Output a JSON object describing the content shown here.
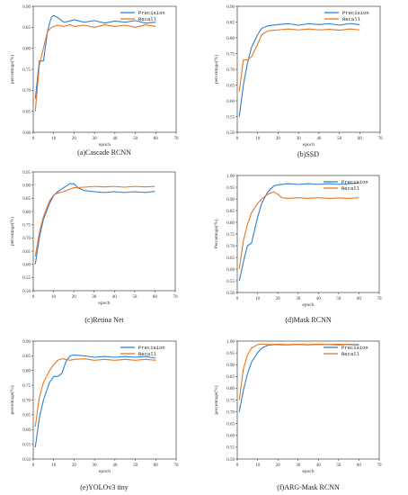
{
  "colors": {
    "precision": "#2e7fd0",
    "recall": "#e8761e"
  },
  "chart_data": [
    {
      "type": "line",
      "caption": "(a)Cascade RCNN",
      "xlabel": "epoch",
      "ylabel": "percentage(%)",
      "xlim": [
        0,
        70
      ],
      "ylim": [
        0.6,
        0.9
      ],
      "xticks": [
        "0",
        "10",
        "20",
        "30",
        "40",
        "50",
        "60",
        "70"
      ],
      "yticks": [
        "0.60",
        "0.65",
        "0.70",
        "0.75",
        "0.80",
        "0.85",
        "0.90"
      ],
      "legend_position": "top-right",
      "series": [
        {
          "name": "Precision",
          "color_key": "precision",
          "x": [
            1,
            3,
            5,
            7,
            8,
            9,
            10,
            12,
            15,
            18,
            20,
            25,
            30,
            35,
            40,
            45,
            50,
            55,
            60
          ],
          "y": [
            0.68,
            0.77,
            0.77,
            0.84,
            0.86,
            0.875,
            0.878,
            0.873,
            0.862,
            0.865,
            0.868,
            0.862,
            0.866,
            0.86,
            0.865,
            0.862,
            0.866,
            0.86,
            0.862
          ]
        },
        {
          "name": "Recall",
          "color_key": "recall",
          "x": [
            1,
            3,
            5,
            7,
            9,
            10,
            12,
            15,
            18,
            20,
            25,
            30,
            35,
            40,
            45,
            50,
            55,
            60
          ],
          "y": [
            0.65,
            0.76,
            0.8,
            0.84,
            0.85,
            0.852,
            0.855,
            0.852,
            0.856,
            0.852,
            0.855,
            0.85,
            0.856,
            0.852,
            0.855,
            0.85,
            0.856,
            0.852
          ]
        }
      ]
    },
    {
      "type": "line",
      "caption": "(b)SSD",
      "xlabel": "epoch",
      "ylabel": "percentage(%)",
      "xlim": [
        0,
        70
      ],
      "ylim": [
        0.5,
        0.9
      ],
      "xticks": [
        "0",
        "10",
        "20",
        "30",
        "40",
        "50",
        "60",
        "70"
      ],
      "yticks": [
        "0.50",
        "0.55",
        "0.60",
        "0.65",
        "0.70",
        "0.75",
        "0.80",
        "0.85",
        "0.90"
      ],
      "legend_position": "top-right",
      "series": [
        {
          "name": "Precision",
          "color_key": "precision",
          "x": [
            1,
            3,
            5,
            7,
            10,
            12,
            15,
            20,
            25,
            30,
            35,
            40,
            45,
            50,
            55,
            60
          ],
          "y": [
            0.55,
            0.65,
            0.72,
            0.77,
            0.81,
            0.83,
            0.838,
            0.842,
            0.845,
            0.84,
            0.845,
            0.842,
            0.845,
            0.84,
            0.845,
            0.842
          ]
        },
        {
          "name": "Recall",
          "color_key": "recall",
          "x": [
            1,
            3,
            5,
            7,
            10,
            12,
            15,
            20,
            25,
            30,
            35,
            40,
            45,
            50,
            55,
            60
          ],
          "y": [
            0.63,
            0.73,
            0.73,
            0.74,
            0.78,
            0.81,
            0.822,
            0.825,
            0.828,
            0.825,
            0.828,
            0.825,
            0.827,
            0.824,
            0.828,
            0.825
          ]
        }
      ]
    },
    {
      "type": "line",
      "caption": "(c)Retina Net",
      "xlabel": "epoch",
      "ylabel": "percentage(%)",
      "xlim": [
        0,
        70
      ],
      "ylim": [
        0.5,
        0.95
      ],
      "xticks": [
        "0",
        "10",
        "20",
        "30",
        "40",
        "50",
        "60",
        "70"
      ],
      "yticks": [
        "0.50",
        "0.55",
        "0.60",
        "0.65",
        "0.70",
        "0.75",
        "0.80",
        "0.85",
        "0.90",
        "0.95"
      ],
      "legend_position": "none",
      "series": [
        {
          "name": "",
          "color_key": "precision",
          "x": [
            1,
            3,
            5,
            8,
            10,
            12,
            15,
            18,
            20,
            22,
            25,
            30,
            35,
            40,
            45,
            50,
            55,
            60
          ],
          "y": [
            0.6,
            0.7,
            0.77,
            0.83,
            0.86,
            0.875,
            0.89,
            0.905,
            0.905,
            0.89,
            0.88,
            0.875,
            0.872,
            0.875,
            0.872,
            0.875,
            0.872,
            0.876
          ]
        },
        {
          "name": "",
          "color_key": "recall",
          "x": [
            1,
            3,
            5,
            8,
            10,
            12,
            15,
            18,
            20,
            25,
            30,
            35,
            40,
            45,
            50,
            55,
            60
          ],
          "y": [
            0.63,
            0.72,
            0.78,
            0.84,
            0.862,
            0.87,
            0.875,
            0.885,
            0.89,
            0.892,
            0.895,
            0.893,
            0.895,
            0.892,
            0.895,
            0.893,
            0.895
          ]
        }
      ]
    },
    {
      "type": "line",
      "caption": "(d)Mask RCNN",
      "xlabel": "epoch",
      "ylabel": "Percentage(%)",
      "xlim": [
        0,
        70
      ],
      "ylim": [
        0.5,
        1.0
      ],
      "xticks": [
        "0",
        "10",
        "20",
        "30",
        "40",
        "50",
        "60",
        "70"
      ],
      "yticks": [
        "0.50",
        "0.55",
        "0.60",
        "0.65",
        "0.70",
        "0.75",
        "0.80",
        "0.85",
        "0.90",
        "0.95",
        "1.00"
      ],
      "legend_position": "top-right",
      "series": [
        {
          "name": "Precision",
          "color_key": "precision",
          "x": [
            1,
            3,
            5,
            7,
            10,
            12,
            15,
            18,
            20,
            25,
            30,
            35,
            40,
            45,
            50,
            55,
            60
          ],
          "y": [
            0.55,
            0.63,
            0.7,
            0.71,
            0.82,
            0.88,
            0.93,
            0.955,
            0.96,
            0.965,
            0.962,
            0.965,
            0.962,
            0.965,
            0.962,
            0.965,
            0.968
          ]
        },
        {
          "name": "Recall",
          "color_key": "recall",
          "x": [
            1,
            3,
            5,
            7,
            10,
            12,
            15,
            18,
            20,
            22,
            25,
            30,
            35,
            40,
            45,
            50,
            55,
            60
          ],
          "y": [
            0.6,
            0.72,
            0.79,
            0.84,
            0.88,
            0.9,
            0.92,
            0.93,
            0.92,
            0.905,
            0.902,
            0.905,
            0.902,
            0.905,
            0.902,
            0.904,
            0.902,
            0.905
          ]
        }
      ]
    },
    {
      "type": "line",
      "caption": "(e)YOLOv3 tiny",
      "xlabel": "epoch",
      "ylabel": "percentage(%)",
      "xlim": [
        0,
        70
      ],
      "ylim": [
        0.5,
        0.9
      ],
      "xticks": [
        "0",
        "10",
        "20",
        "30",
        "40",
        "50",
        "60",
        "70"
      ],
      "yticks": [
        "0.50",
        "0.55",
        "0.60",
        "0.65",
        "0.70",
        "0.75",
        "0.80",
        "0.85",
        "0.90"
      ],
      "legend_position": "top-right",
      "series": [
        {
          "name": "Precision",
          "color_key": "precision",
          "x": [
            1,
            3,
            5,
            8,
            10,
            12,
            14,
            16,
            18,
            20,
            25,
            30,
            35,
            40,
            45,
            50,
            55,
            60
          ],
          "y": [
            0.54,
            0.64,
            0.7,
            0.76,
            0.78,
            0.78,
            0.79,
            0.83,
            0.85,
            0.853,
            0.85,
            0.845,
            0.848,
            0.845,
            0.848,
            0.845,
            0.848,
            0.842
          ]
        },
        {
          "name": "Recall",
          "color_key": "recall",
          "x": [
            1,
            3,
            5,
            8,
            10,
            12,
            14,
            16,
            18,
            20,
            25,
            30,
            35,
            40,
            45,
            50,
            55,
            60
          ],
          "y": [
            0.61,
            0.71,
            0.76,
            0.8,
            0.82,
            0.835,
            0.84,
            0.838,
            0.835,
            0.838,
            0.84,
            0.835,
            0.838,
            0.835,
            0.838,
            0.835,
            0.838,
            0.835
          ]
        }
      ]
    },
    {
      "type": "line",
      "caption": "(f)ARG-Mask RCNN",
      "xlabel": "epoch",
      "ylabel": "percentage(%)",
      "xlim": [
        0,
        70
      ],
      "ylim": [
        0.5,
        1.0
      ],
      "xticks": [
        "0",
        "10",
        "20",
        "30",
        "40",
        "50",
        "60",
        "70"
      ],
      "yticks": [
        "0.50",
        "0.55",
        "0.60",
        "0.65",
        "0.70",
        "0.75",
        "0.80",
        "0.85",
        "0.90",
        "0.95",
        "1.00"
      ],
      "legend_position": "top-right",
      "series": [
        {
          "name": "Precision",
          "color_key": "precision",
          "x": [
            1,
            3,
            5,
            7,
            10,
            12,
            15,
            18,
            20,
            25,
            30,
            35,
            40,
            45,
            50,
            55,
            60
          ],
          "y": [
            0.7,
            0.79,
            0.86,
            0.91,
            0.95,
            0.97,
            0.982,
            0.985,
            0.985,
            0.984,
            0.986,
            0.984,
            0.986,
            0.985,
            0.984,
            0.986,
            0.985
          ]
        },
        {
          "name": "Recall",
          "color_key": "recall",
          "x": [
            1,
            3,
            5,
            7,
            10,
            12,
            15,
            20,
            25,
            30,
            35,
            40,
            45,
            50,
            55,
            60
          ],
          "y": [
            0.75,
            0.88,
            0.94,
            0.97,
            0.985,
            0.988,
            0.985,
            0.987,
            0.985,
            0.987,
            0.985,
            0.987,
            0.985,
            0.987,
            0.985,
            0.983
          ]
        }
      ]
    }
  ]
}
